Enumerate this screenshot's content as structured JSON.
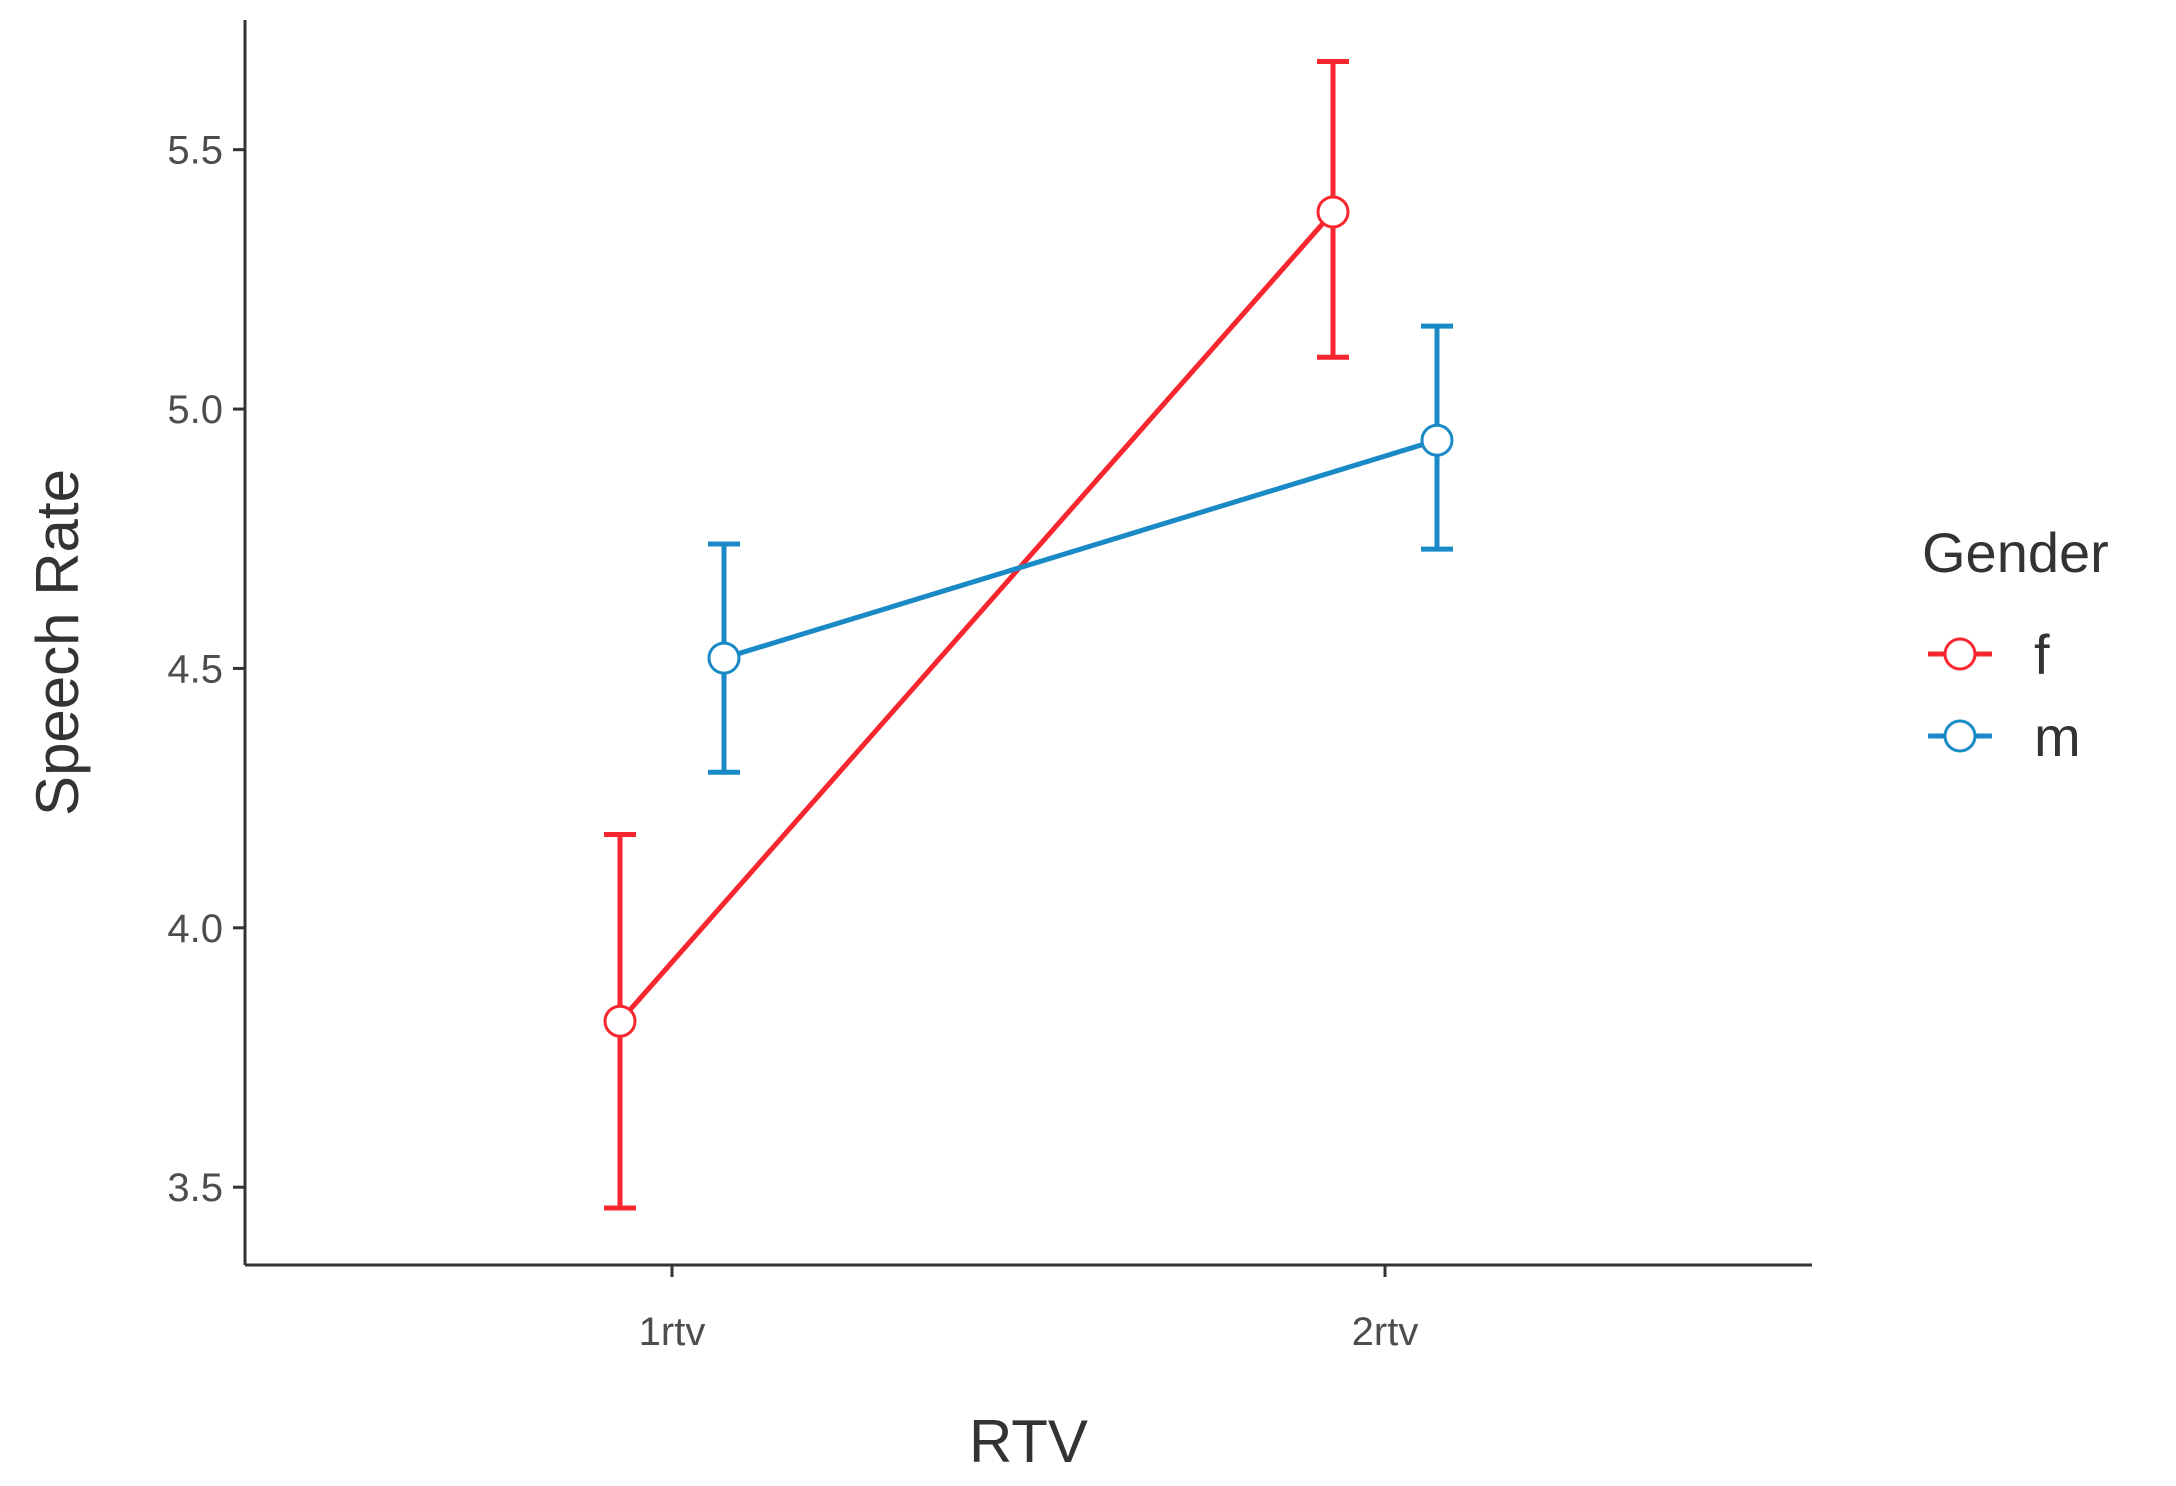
{
  "chart_data": {
    "type": "line",
    "xlabel": "RTV",
    "ylabel": "Speech Rate",
    "categories": [
      "1rtv",
      "2rtv"
    ],
    "ylim": [
      3.35,
      5.75
    ],
    "yticks": [
      3.5,
      4.0,
      4.5,
      5.0,
      5.5
    ],
    "ytick_labels": [
      "3.5",
      "4.0",
      "4.5",
      "5.0",
      "5.5"
    ],
    "grid": false,
    "legend": {
      "title": "Gender",
      "placement": "right"
    },
    "series": [
      {
        "name": "f",
        "color": "#f8272f",
        "values": [
          3.82,
          5.38
        ],
        "error_low": [
          3.46,
          5.1
        ],
        "error_high": [
          4.18,
          5.67
        ]
      },
      {
        "name": "m",
        "color": "#1a8ac6",
        "values": [
          4.52,
          4.94
        ],
        "error_low": [
          4.3,
          4.73
        ],
        "error_high": [
          4.74,
          5.16
        ]
      }
    ]
  }
}
